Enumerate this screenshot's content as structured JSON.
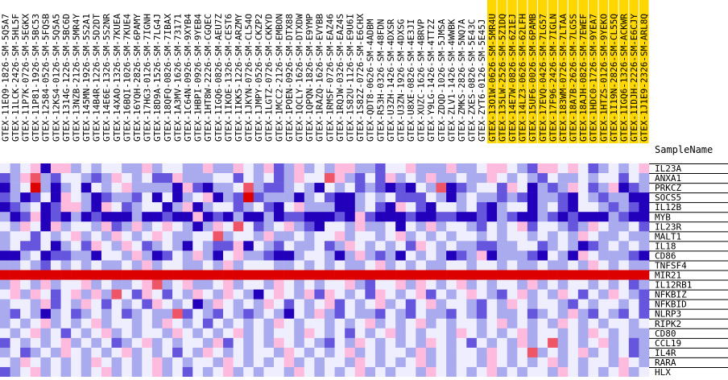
{
  "chart_data": {
    "type": "heatmap",
    "title": "",
    "row_header": "SampleName",
    "columns": [
      "GTEX-11EQ9-1826-SM-5Q5A7",
      "GTEX-11LCK-2426-SM-5HL5F",
      "GTEX-11P7K-0726-SM-5EGKX",
      "GTEX-11P81-1926-SM-5BC53",
      "GTEX-12584-0526-SM-5FQSB",
      "GTEX-12KS4-0126-SM-5Q5A5",
      "GTEX-1314G-1226-SM-5BC6D",
      "GTEX-13NZB-2126-SM-5MR4Y",
      "GTEX-145MN-1926-SM-5S2A1",
      "GTEX-14B4R-1226-SM-5D2DT",
      "GTEX-14E6E-1326-SM-5S2NR",
      "GTEX-14XAO-1326-SM-7KUEA",
      "GTEX-16BQI-1026-SM-7KUE4",
      "GTEX-16YQH-2826-SM-6PAMY",
      "GTEX-17HG3-0126-SM-7IGNH",
      "GTEX-18D9A-1526-SM-7LG4J",
      "GTEX-18QFQ-0826-SM-7IBAX",
      "GTEX-1A3MV-1626-SM-73171",
      "GTEX-1C64N-0926-SM-9XYB4",
      "GTEX-1HBPI-0926-SM-9YEB4",
      "GTEX-1HT8W-2226-SM-CGQEC",
      "GTEX-1IGQ6-0826-SM-AEU7Z",
      "GTEX-1IKOE-1326-SM-CEST6",
      "GTEX-1IKK5-1226-SM-ARZMY",
      "GTEX-1JKYN-0726-SM-CL54O",
      "GTEX-1JMPY-0526-SM-CKZP2",
      "GTEX-1LGTZ-0726-SM-CKKYD",
      "GTEX-1MCC2-2126-SM-EMBON",
      "GTEX-1POEN-0926-SM-DTX88",
      "GTEX-1QCLY-1626-SM-DTXDW",
      "GTEX-1QPQN-1826-SM-E9YMP",
      "GTEX-1RAZQ-1626-SM-EVYBB",
      "GTEX-1RMSF-0726-SM-EAZ46",
      "GTEX-1RQJW-0326-SM-EAZ4S",
      "GTEX-1S82U-1126-SM-E9U6I",
      "GTEX-1S82Z-0726-SM-E6CHX",
      "GTEX-QDT8-0626-SM-4ADBM",
      "GTEX-R53H-0326-SM-48FDN",
      "GTEX-U3ZH-1426-SM-4DXSR",
      "GTEX-U3ZN-1926-SM-4DXSG",
      "GTEX-U8XE-0826-SM-4E3JI",
      "GTEX-XUZC-1626-SM-4BRVP",
      "GTEX-Y9LG-1426-SM-4TT2Z",
      "GTEX-ZDQD-1026-SM-5JMSA",
      "GTEX-ZLV1-1426-SM-4WWBK",
      "GTEX-ZMKS-2826-SM-5NQ7A",
      "GTEX-ZXES-0826-SM-5E43C",
      "GTEX-ZYT6-0126-SM-5E45J",
      "GTEX-13O1W-0626-SM-5MR4U",
      "GTEX-135LW-2526-SM-5Z1DQ",
      "GTEX-14E7W-0826-SM-6Z1EJ",
      "GTEX-14LZ3-0626-SM-62LFH",
      "GTEX-15UF6-0026-SM-6PAMB",
      "GTEX-17EVQ-0426-SM-7LG57",
      "GTEX-17F96-2426-SM-7IGLN",
      "GTEX-183WM-0726-SM-7LTAA",
      "GTEX-18A7B-2626-SM-7LG5S",
      "GTEX-18AJH-0826-SM-7EWEF",
      "GTEX-1HDC0-1726-SM-9YEA7",
      "GTEX-1HTZS-0126-SM-9YEKO",
      "GTEX-1I19N-2826-SM-CL55Q",
      "GTEX-1IGQ6-1326-SM-ACKWR",
      "GTEX-1IDJH-2226-SM-E6CJY",
      "GTEX-1J1E9-2326-SM-ARL8Q"
    ],
    "highlighted_column_range": [
      48,
      63
    ],
    "highlight_color": "#FFD700",
    "rows": [
      "IL23A",
      "ANXA1",
      "PRKCZ",
      "SOCS5",
      "IL12B",
      "MYB",
      "IL23R",
      "MALT1",
      "IL18",
      "CD86",
      "TNFSF4",
      "MIR21",
      "IL12RB1",
      "NFKBIZ",
      "NFKBID",
      "NLRP3",
      "RIPK2",
      "CD80",
      "CCL19",
      "IL4R",
      "RARA",
      "HLX"
    ],
    "color_scale": {
      "levels": [
        1,
        2,
        3,
        4,
        5,
        6,
        7
      ],
      "colors": [
        "#2200BB",
        "#6655DD",
        "#AAAAEE",
        "#EEEEFF",
        "#FFBBDD",
        "#EE5566",
        "#DD0000"
      ]
    },
    "values": [
      [
        4,
        3,
        4,
        5,
        1,
        5,
        5,
        3,
        4,
        3,
        4,
        4,
        3,
        3,
        5,
        3,
        4,
        4,
        3,
        3,
        5,
        3,
        3,
        5,
        4,
        3,
        5,
        2,
        3,
        5,
        3,
        4,
        3,
        5,
        5,
        3,
        3,
        2,
        4,
        4,
        5,
        3,
        3,
        3,
        5,
        3,
        3,
        4,
        5,
        5,
        4,
        3,
        2,
        5,
        5,
        4,
        5,
        4,
        2,
        3,
        4,
        3,
        4,
        5
      ],
      [
        2,
        3,
        5,
        6,
        3,
        2,
        4,
        4,
        3,
        2,
        3,
        5,
        4,
        3,
        4,
        2,
        2,
        5,
        3,
        3,
        3,
        4,
        4,
        2,
        4,
        3,
        4,
        2,
        3,
        5,
        4,
        4,
        6,
        5,
        3,
        2,
        4,
        2,
        5,
        3,
        4,
        3,
        5,
        3,
        3,
        4,
        3,
        3,
        5,
        4,
        3,
        4,
        3,
        2,
        4,
        3,
        3,
        4,
        3,
        4,
        4,
        2,
        4,
        3
      ],
      [
        1,
        3,
        4,
        7,
        3,
        1,
        3,
        4,
        1,
        4,
        3,
        4,
        5,
        3,
        3,
        3,
        3,
        1,
        5,
        2,
        1,
        3,
        3,
        4,
        6,
        3,
        2,
        2,
        3,
        4,
        3,
        1,
        4,
        3,
        4,
        2,
        3,
        2,
        1,
        2,
        1,
        4,
        3,
        6,
        1,
        2,
        3,
        4,
        4,
        2,
        5,
        4,
        1,
        3,
        2,
        3,
        5,
        4,
        2,
        3,
        5,
        1,
        2,
        3
      ],
      [
        2,
        3,
        1,
        2,
        4,
        1,
        5,
        4,
        3,
        1,
        2,
        3,
        3,
        2,
        4,
        1,
        4,
        1,
        3,
        4,
        5,
        1,
        3,
        2,
        7,
        2,
        3,
        3,
        3,
        1,
        3,
        4,
        2,
        1,
        1,
        3,
        4,
        3,
        4,
        2,
        2,
        2,
        4,
        3,
        1,
        3,
        4,
        3,
        3,
        2,
        3,
        2,
        1,
        3,
        3,
        2,
        1,
        4,
        3,
        2,
        3,
        3,
        1,
        1
      ],
      [
        1,
        2,
        3,
        4,
        1,
        2,
        5,
        5,
        3,
        1,
        5,
        4,
        2,
        3,
        4,
        4,
        1,
        3,
        5,
        1,
        3,
        4,
        4,
        2,
        3,
        4,
        2,
        1,
        4,
        5,
        3,
        3,
        3,
        1,
        1,
        3,
        4,
        2,
        1,
        5,
        4,
        2,
        1,
        4,
        4,
        3,
        4,
        2,
        1,
        3,
        4,
        4,
        1,
        3,
        4,
        2,
        1,
        4,
        4,
        3,
        2,
        3,
        2,
        1
      ],
      [
        3,
        1,
        2,
        5,
        1,
        2,
        1,
        3,
        1,
        2,
        1,
        1,
        1,
        3,
        1,
        1,
        2,
        1,
        1,
        5,
        1,
        2,
        1,
        3,
        1,
        1,
        3,
        1,
        2,
        2,
        1,
        1,
        1,
        2,
        1,
        5,
        2,
        1,
        1,
        1,
        2,
        1,
        1,
        2,
        2,
        1,
        1,
        2,
        1,
        3,
        2,
        1,
        1,
        3,
        2,
        1,
        2,
        1,
        1,
        1,
        3,
        2,
        1,
        1
      ],
      [
        4,
        3,
        5,
        4,
        1,
        5,
        3,
        4,
        4,
        3,
        5,
        2,
        3,
        5,
        3,
        4,
        5,
        4,
        3,
        1,
        3,
        5,
        4,
        6,
        4,
        2,
        3,
        4,
        5,
        3,
        2,
        1,
        4,
        4,
        3,
        5,
        3,
        3,
        4,
        1,
        4,
        3,
        5,
        3,
        4,
        4,
        3,
        2,
        4,
        3,
        4,
        5,
        2,
        4,
        4,
        3,
        2,
        3,
        5,
        4,
        3,
        3,
        4,
        2
      ],
      [
        3,
        4,
        4,
        2,
        4,
        3,
        4,
        5,
        3,
        4,
        3,
        5,
        4,
        3,
        4,
        5,
        4,
        3,
        3,
        4,
        4,
        6,
        3,
        4,
        4,
        3,
        5,
        3,
        3,
        4,
        3,
        4,
        4,
        5,
        3,
        4,
        4,
        3,
        4,
        5,
        3,
        4,
        3,
        4,
        3,
        4,
        4,
        3,
        4,
        3,
        4,
        4,
        3,
        4,
        3,
        4,
        3,
        5,
        4,
        3,
        3,
        4,
        3,
        3
      ],
      [
        3,
        4,
        2,
        2,
        4,
        1,
        3,
        4,
        2,
        5,
        4,
        3,
        5,
        4,
        2,
        3,
        4,
        3,
        1,
        4,
        3,
        2,
        2,
        5,
        1,
        4,
        3,
        2,
        4,
        3,
        3,
        4,
        2,
        3,
        5,
        4,
        3,
        4,
        3,
        4,
        2,
        5,
        4,
        3,
        4,
        3,
        3,
        2,
        2,
        3,
        3,
        4,
        4,
        2,
        3,
        4,
        3,
        1,
        2,
        3,
        4,
        3,
        4,
        3
      ],
      [
        1,
        1,
        3,
        4,
        1,
        2,
        2,
        3,
        3,
        1,
        4,
        4,
        3,
        5,
        3,
        1,
        2,
        4,
        3,
        5,
        3,
        1,
        4,
        5,
        3,
        3,
        2,
        1,
        1,
        3,
        4,
        4,
        3,
        1,
        3,
        5,
        3,
        2,
        3,
        1,
        4,
        3,
        4,
        3,
        1,
        2,
        3,
        5,
        1,
        3,
        3,
        3,
        2,
        1,
        4,
        3,
        1,
        5,
        4,
        3,
        3,
        3,
        2,
        1
      ],
      [
        3,
        3,
        4,
        3,
        2,
        4,
        3,
        4,
        3,
        4,
        3,
        3,
        4,
        3,
        5,
        3,
        4,
        4,
        3,
        3,
        4,
        3,
        5,
        3,
        4,
        4,
        4,
        3,
        3,
        4,
        3,
        4,
        3,
        4,
        3,
        3,
        4,
        5,
        3,
        4,
        3,
        4,
        3,
        3,
        4,
        4,
        3,
        4,
        4,
        3,
        4,
        3,
        3,
        4,
        3,
        3,
        4,
        3,
        5,
        4,
        3,
        4,
        3,
        3
      ],
      [
        7,
        7,
        7,
        7,
        7,
        7,
        7,
        7,
        7,
        7,
        7,
        7,
        7,
        7,
        7,
        7,
        7,
        7,
        7,
        7,
        7,
        7,
        7,
        7,
        7,
        7,
        7,
        7,
        7,
        7,
        7,
        7,
        7,
        7,
        7,
        7,
        7,
        7,
        7,
        7,
        7,
        7,
        7,
        7,
        7,
        7,
        7,
        7,
        7,
        7,
        7,
        7,
        7,
        7,
        7,
        7,
        7,
        7,
        7,
        7,
        7,
        7,
        7,
        7
      ],
      [
        3,
        5,
        4,
        3,
        5,
        3,
        4,
        4,
        5,
        3,
        4,
        3,
        3,
        4,
        5,
        6,
        3,
        4,
        5,
        3,
        3,
        4,
        5,
        3,
        4,
        4,
        3,
        5,
        4,
        3,
        4,
        3,
        4,
        4,
        5,
        3,
        2,
        4,
        4,
        5,
        3,
        5,
        4,
        3,
        4,
        5,
        3,
        4,
        3,
        4,
        4,
        3,
        5,
        3,
        4,
        3,
        4,
        4,
        3,
        4,
        3,
        4,
        2,
        3
      ],
      [
        4,
        5,
        3,
        5,
        4,
        2,
        4,
        5,
        3,
        5,
        3,
        6,
        4,
        2,
        5,
        4,
        2,
        4,
        3,
        5,
        4,
        3,
        5,
        4,
        3,
        1,
        4,
        5,
        4,
        3,
        5,
        2,
        5,
        4,
        3,
        4,
        2,
        5,
        4,
        3,
        4,
        5,
        2,
        4,
        3,
        4,
        5,
        4,
        3,
        2,
        4,
        5,
        3,
        4,
        3,
        5,
        4,
        2,
        4,
        3,
        5,
        4,
        3,
        2
      ],
      [
        3,
        4,
        4,
        3,
        5,
        2,
        4,
        3,
        5,
        4,
        2,
        4,
        3,
        4,
        2,
        5,
        4,
        3,
        4,
        1,
        3,
        5,
        4,
        3,
        4,
        3,
        5,
        4,
        2,
        4,
        3,
        4,
        5,
        2,
        4,
        3,
        4,
        5,
        3,
        4,
        2,
        4,
        5,
        3,
        4,
        4,
        3,
        2,
        4,
        3,
        5,
        4,
        3,
        4,
        4,
        3,
        2,
        4,
        3,
        4,
        4,
        3,
        4,
        2
      ],
      [
        3,
        2,
        4,
        3,
        1,
        3,
        4,
        2,
        3,
        4,
        3,
        4,
        2,
        3,
        4,
        3,
        3,
        6,
        2,
        4,
        3,
        2,
        4,
        3,
        2,
        3,
        4,
        3,
        1,
        4,
        3,
        5,
        3,
        2,
        4,
        3,
        3,
        2,
        4,
        3,
        2,
        4,
        3,
        3,
        2,
        4,
        3,
        2,
        4,
        3,
        3,
        4,
        2,
        3,
        4,
        3,
        5,
        3,
        2,
        4,
        3,
        2,
        4,
        2
      ],
      [
        3,
        4,
        3,
        4,
        5,
        3,
        4,
        3,
        4,
        5,
        3,
        4,
        4,
        3,
        4,
        3,
        5,
        4,
        3,
        4,
        2,
        4,
        3,
        4,
        3,
        4,
        3,
        5,
        4,
        3,
        4,
        4,
        3,
        4,
        3,
        4,
        5,
        3,
        4,
        3,
        4,
        5,
        3,
        4,
        3,
        4,
        4,
        3,
        4,
        5,
        3,
        4,
        3,
        4,
        3,
        5,
        4,
        3,
        4,
        3,
        4,
        4,
        3,
        4
      ],
      [
        4,
        3,
        4,
        5,
        3,
        4,
        2,
        4,
        3,
        4,
        5,
        3,
        4,
        3,
        4,
        4,
        3,
        5,
        4,
        3,
        4,
        3,
        4,
        5,
        3,
        4,
        3,
        4,
        4,
        3,
        5,
        4,
        3,
        4,
        2,
        4,
        3,
        4,
        5,
        3,
        4,
        3,
        4,
        4,
        3,
        5,
        4,
        3,
        4,
        3,
        4,
        5,
        3,
        4,
        4,
        3,
        4,
        3,
        5,
        4,
        3,
        4,
        3,
        3
      ],
      [
        2,
        4,
        3,
        4,
        3,
        4,
        5,
        3,
        4,
        3,
        4,
        2,
        3,
        4,
        5,
        3,
        4,
        3,
        4,
        4,
        3,
        5,
        2,
        4,
        3,
        4,
        3,
        5,
        4,
        3,
        4,
        3,
        2,
        4,
        3,
        5,
        4,
        3,
        4,
        3,
        4,
        3,
        5,
        4,
        3,
        4,
        2,
        4,
        3,
        4,
        3,
        5,
        3,
        4,
        6,
        3,
        4,
        3,
        4,
        5,
        3,
        4,
        2,
        3
      ],
      [
        3,
        4,
        2,
        3,
        4,
        3,
        5,
        4,
        3,
        4,
        3,
        4,
        5,
        3,
        4,
        3,
        4,
        2,
        4,
        3,
        5,
        4,
        3,
        4,
        3,
        4,
        4,
        3,
        5,
        4,
        3,
        4,
        3,
        4,
        5,
        3,
        4,
        3,
        4,
        4,
        3,
        5,
        3,
        4,
        3,
        4,
        4,
        3,
        5,
        4,
        3,
        4,
        6,
        3,
        4,
        3,
        4,
        5,
        3,
        4,
        3,
        4,
        2,
        3
      ],
      [
        4,
        3,
        5,
        4,
        3,
        4,
        3,
        4,
        3,
        5,
        4,
        3,
        4,
        3,
        4,
        5,
        3,
        4,
        3,
        4,
        4,
        3,
        5,
        4,
        3,
        4,
        3,
        4,
        5,
        3,
        4,
        3,
        4,
        4,
        3,
        5,
        4,
        3,
        4,
        3,
        4,
        5,
        3,
        4,
        3,
        4,
        4,
        3,
        5,
        4,
        3,
        4,
        3,
        4,
        5,
        3,
        4,
        3,
        4,
        4,
        3,
        5,
        4,
        3
      ],
      [
        2,
        3,
        4,
        5,
        3,
        4,
        3,
        4,
        3,
        4,
        5,
        3,
        4,
        3,
        4,
        5,
        3,
        4,
        2,
        4,
        3,
        4,
        5,
        3,
        4,
        3,
        4,
        4,
        3,
        5,
        4,
        3,
        4,
        3,
        4,
        5,
        3,
        4,
        3,
        4,
        4,
        3,
        5,
        4,
        3,
        4,
        3,
        4,
        5,
        3,
        4,
        3,
        4,
        4,
        3,
        5,
        4,
        3,
        4,
        3,
        4,
        5,
        3,
        4
      ]
    ]
  }
}
